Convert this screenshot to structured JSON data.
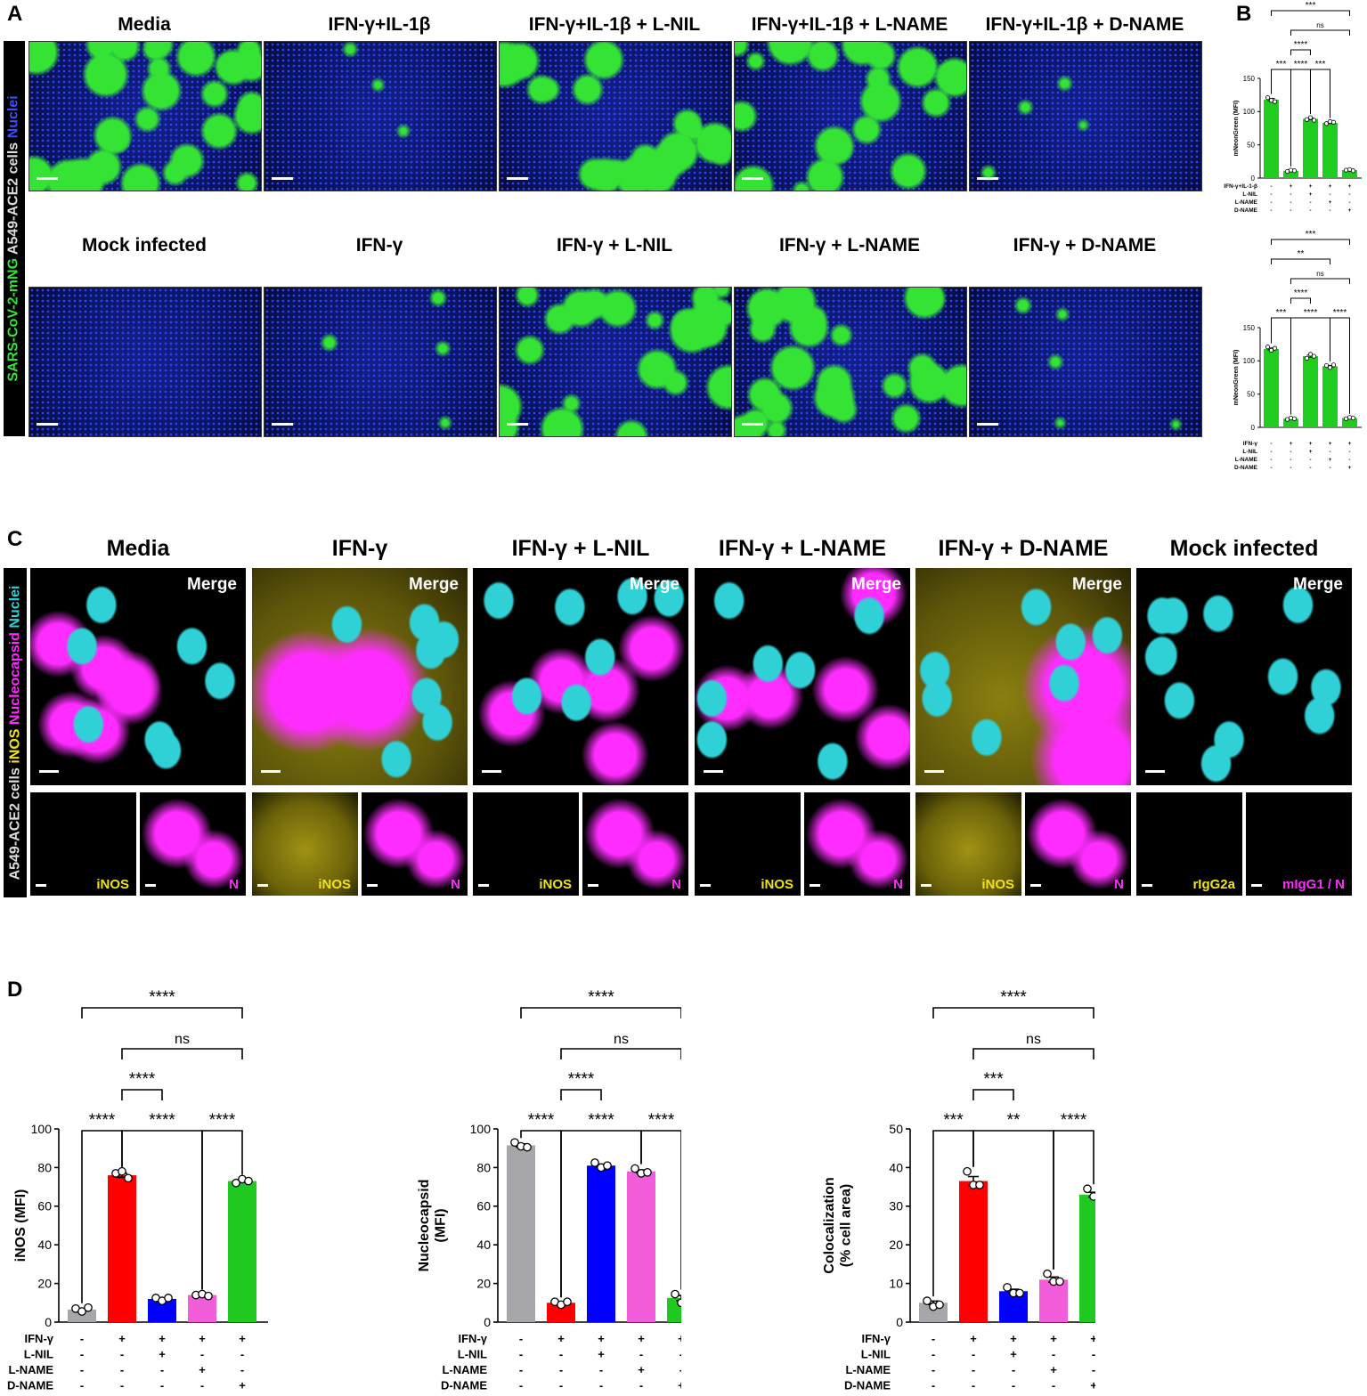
{
  "panels": {
    "a": "A",
    "b": "B",
    "c": "C",
    "d": "D"
  },
  "panel_a": {
    "side_label_cell": "A549-ACE2 cells",
    "side_label_virus": "SARS-CoV-2-mNG",
    "side_label_nuclei": "Nuclei",
    "row1_titles": [
      "Media",
      "IFN-γ+IL-1β",
      "IFN-γ+IL-1β + L-NIL",
      "IFN-γ+IL-1β + L-NAME",
      "IFN-γ+IL-1β + D-NAME"
    ],
    "row2_titles": [
      "Mock infected",
      "IFN-γ",
      "IFN-γ + L-NIL",
      "IFN-γ + L-NAME",
      "IFN-γ + D-NAME"
    ],
    "row1_green_level": [
      1.0,
      0.05,
      0.75,
      0.7,
      0.08
    ],
    "row2_green_level": [
      0.0,
      0.06,
      0.9,
      0.8,
      0.12
    ],
    "nuclei_color": "#1a2fd0",
    "virus_color": "#34e334"
  },
  "panel_c": {
    "titles": [
      "Media",
      "IFN-γ",
      "IFN-γ + L-NIL",
      "IFN-γ + L-NAME",
      "IFN-γ + D-NAME",
      "Mock infected"
    ],
    "merge_label": "Merge",
    "side_label_cell": "A549-ACE2 cells",
    "side_label_inos": "iNOS",
    "side_label_nucleo": "Nucleocapsid",
    "side_label_nuclei": "Nuclei",
    "sub_labels": [
      [
        "iNOS",
        "N"
      ],
      [
        "iNOS",
        "N"
      ],
      [
        "iNOS",
        "N"
      ],
      [
        "iNOS",
        "N"
      ],
      [
        "iNOS",
        "N"
      ],
      [
        "rIgG2a",
        "mIgG1 / N"
      ]
    ],
    "colors": {
      "nuclei": "#2fd0d6",
      "nucleocapsid": "#ff2cff",
      "inos": "#f0e418"
    }
  },
  "chart_data": [
    {
      "id": "B-top",
      "type": "bar",
      "ylabel": "mNeonGreen (MFI)",
      "ylim": [
        0,
        150
      ],
      "yticks": [
        0,
        50,
        100,
        150
      ],
      "values": [
        118,
        11,
        89,
        83,
        12
      ],
      "points": [
        [
          121,
          117,
          115
        ],
        [
          10,
          12,
          11
        ],
        [
          88,
          91,
          87
        ],
        [
          82,
          85,
          84
        ],
        [
          12,
          13,
          11
        ]
      ],
      "colors": [
        "#1fcc1f",
        "#1fcc1f",
        "#1fcc1f",
        "#1fcc1f",
        "#1fcc1f"
      ],
      "condition_rows": [
        {
          "label": "IFN-γ+IL-1-β",
          "signs": [
            "-",
            "+",
            "+",
            "+",
            "+"
          ]
        },
        {
          "label": "L-NIL",
          "signs": [
            "-",
            "-",
            "+",
            "-",
            "-"
          ]
        },
        {
          "label": "L-NAME",
          "signs": [
            "-",
            "-",
            "-",
            "+",
            "-"
          ]
        },
        {
          "label": "D-NAME",
          "signs": [
            "-",
            "-",
            "-",
            "-",
            "+"
          ]
        }
      ],
      "comparisons": [
        {
          "from": 0,
          "to": 1,
          "label": "***"
        },
        {
          "from": 1,
          "to": 2,
          "label": "****"
        },
        {
          "from": 2,
          "to": 3,
          "label": "***"
        },
        {
          "from": 1,
          "to": 2,
          "label": "****",
          "level": 1
        },
        {
          "from": 1,
          "to": 4,
          "label": "ns",
          "level": 2
        },
        {
          "from": 0,
          "to": 4,
          "label": "***",
          "level": 3
        }
      ]
    },
    {
      "id": "B-bottom",
      "type": "bar",
      "ylabel": "mNeonGreen (MFI)",
      "ylim": [
        0,
        150
      ],
      "yticks": [
        0,
        50,
        100,
        150
      ],
      "values": [
        118,
        13,
        107,
        92,
        14
      ],
      "points": [
        [
          121,
          116,
          119
        ],
        [
          12,
          14,
          13
        ],
        [
          104,
          110,
          107
        ],
        [
          93,
          90,
          94
        ],
        [
          13,
          15,
          14
        ]
      ],
      "colors": [
        "#1fcc1f",
        "#1fcc1f",
        "#1fcc1f",
        "#1fcc1f",
        "#1fcc1f"
      ],
      "condition_rows": [
        {
          "label": "IFN-γ",
          "signs": [
            "-",
            "+",
            "+",
            "+",
            "+"
          ]
        },
        {
          "label": "L-NIL",
          "signs": [
            "-",
            "-",
            "+",
            "-",
            "-"
          ]
        },
        {
          "label": "L-NAME",
          "signs": [
            "-",
            "-",
            "-",
            "+",
            "-"
          ]
        },
        {
          "label": "D-NAME",
          "signs": [
            "-",
            "-",
            "-",
            "-",
            "+"
          ]
        }
      ],
      "comparisons": [
        {
          "from": 0,
          "to": 1,
          "label": "***"
        },
        {
          "from": 1,
          "to": 3,
          "label": "****"
        },
        {
          "from": 3,
          "to": 4,
          "label": "****"
        },
        {
          "from": 1,
          "to": 2,
          "label": "****",
          "level": 1
        },
        {
          "from": 1,
          "to": 4,
          "label": "ns",
          "level": 2
        },
        {
          "from": 0,
          "to": 3,
          "label": "**",
          "level": 3
        },
        {
          "from": 0,
          "to": 4,
          "label": "***",
          "level": 4
        }
      ]
    },
    {
      "id": "D-iNOS",
      "type": "bar",
      "ylabel": "iNOS (MFI)",
      "ylim": [
        0,
        100
      ],
      "yticks": [
        0,
        20,
        40,
        60,
        80,
        100
      ],
      "values": [
        6.5,
        76,
        12,
        14,
        73
      ],
      "points": [
        [
          7,
          5.5,
          7.5
        ],
        [
          77,
          78,
          74.5
        ],
        [
          12.5,
          11,
          12.5
        ],
        [
          14,
          14.5,
          13.5
        ],
        [
          72,
          74,
          73
        ]
      ],
      "colors": [
        "#a6a6ab",
        "#ff0000",
        "#0000ff",
        "#f25ed9",
        "#1fc91f"
      ],
      "condition_rows": [
        {
          "label": "IFN-γ",
          "signs": [
            "-",
            "+",
            "+",
            "+",
            "+"
          ]
        },
        {
          "label": "L-NIL",
          "signs": [
            "-",
            "-",
            "+",
            "-",
            "-"
          ]
        },
        {
          "label": "L-NAME",
          "signs": [
            "-",
            "-",
            "-",
            "+",
            "-"
          ]
        },
        {
          "label": "D-NAME",
          "signs": [
            "-",
            "-",
            "-",
            "-",
            "+"
          ]
        }
      ],
      "comparisons": [
        {
          "from": 0,
          "to": 1,
          "label": "****"
        },
        {
          "from": 1,
          "to": 3,
          "label": "****"
        },
        {
          "from": 3,
          "to": 4,
          "label": "****"
        },
        {
          "from": 1,
          "to": 2,
          "label": "****",
          "level": 1
        },
        {
          "from": 1,
          "to": 4,
          "label": "ns",
          "level": 2
        },
        {
          "from": 0,
          "to": 4,
          "label": "****",
          "level": 3
        }
      ]
    },
    {
      "id": "D-Nucleocapsid",
      "type": "bar",
      "ylabel": "Nucleocapsid",
      "ylabel2": "(MFI)",
      "ylim": [
        0,
        100
      ],
      "yticks": [
        0,
        20,
        40,
        60,
        80,
        100
      ],
      "values": [
        91.5,
        10,
        81,
        78,
        12.5
      ],
      "points": [
        [
          93,
          91,
          90.5
        ],
        [
          10.5,
          9,
          10.5
        ],
        [
          82.5,
          80,
          81
        ],
        [
          79.5,
          77,
          77.5
        ],
        [
          14.5,
          10,
          12.5
        ]
      ],
      "colors": [
        "#a6a6ab",
        "#ff0000",
        "#0000ff",
        "#f25ed9",
        "#1fc91f"
      ],
      "condition_rows": [
        {
          "label": "IFN-γ",
          "signs": [
            "-",
            "+",
            "+",
            "+",
            "+"
          ]
        },
        {
          "label": "L-NIL",
          "signs": [
            "-",
            "-",
            "+",
            "-",
            "-"
          ]
        },
        {
          "label": "L-NAME",
          "signs": [
            "-",
            "-",
            "-",
            "+",
            "-"
          ]
        },
        {
          "label": "D-NAME",
          "signs": [
            "-",
            "-",
            "-",
            "-",
            "+"
          ]
        }
      ],
      "comparisons": [
        {
          "from": 0,
          "to": 1,
          "label": "****"
        },
        {
          "from": 1,
          "to": 3,
          "label": "****"
        },
        {
          "from": 3,
          "to": 4,
          "label": "****"
        },
        {
          "from": 1,
          "to": 2,
          "label": "****",
          "level": 1
        },
        {
          "from": 1,
          "to": 4,
          "label": "ns",
          "level": 2
        },
        {
          "from": 0,
          "to": 4,
          "label": "****",
          "level": 3
        }
      ]
    },
    {
      "id": "D-Colocalization",
      "type": "bar",
      "ylabel": "Colocalization",
      "ylabel2": "(% cell area)",
      "ylim": [
        0,
        50
      ],
      "yticks": [
        0,
        10,
        20,
        30,
        40,
        50
      ],
      "values": [
        5,
        36.5,
        8,
        11,
        33
      ],
      "points": [
        [
          5.5,
          4,
          4.5
        ],
        [
          39,
          35.5,
          35.5
        ],
        [
          9,
          7.5,
          7.5
        ],
        [
          12.5,
          10.5,
          10.5
        ],
        [
          34.5,
          32.5,
          33
        ]
      ],
      "colors": [
        "#a6a6ab",
        "#ff0000",
        "#0000ff",
        "#f25ed9",
        "#1fc91f"
      ],
      "condition_rows": [
        {
          "label": "IFN-γ",
          "signs": [
            "-",
            "+",
            "+",
            "+",
            "+"
          ]
        },
        {
          "label": "L-NIL",
          "signs": [
            "-",
            "-",
            "+",
            "-",
            "-"
          ]
        },
        {
          "label": "L-NAME",
          "signs": [
            "-",
            "-",
            "-",
            "+",
            "-"
          ]
        },
        {
          "label": "D-NAME",
          "signs": [
            "-",
            "-",
            "-",
            "-",
            "+"
          ]
        }
      ],
      "comparisons": [
        {
          "from": 0,
          "to": 1,
          "label": "***"
        },
        {
          "from": 1,
          "to": 3,
          "label": "**"
        },
        {
          "from": 3,
          "to": 4,
          "label": "****"
        },
        {
          "from": 1,
          "to": 2,
          "label": "***",
          "level": 1
        },
        {
          "from": 1,
          "to": 4,
          "label": "ns",
          "level": 2
        },
        {
          "from": 0,
          "to": 4,
          "label": "****",
          "level": 3
        }
      ]
    }
  ]
}
